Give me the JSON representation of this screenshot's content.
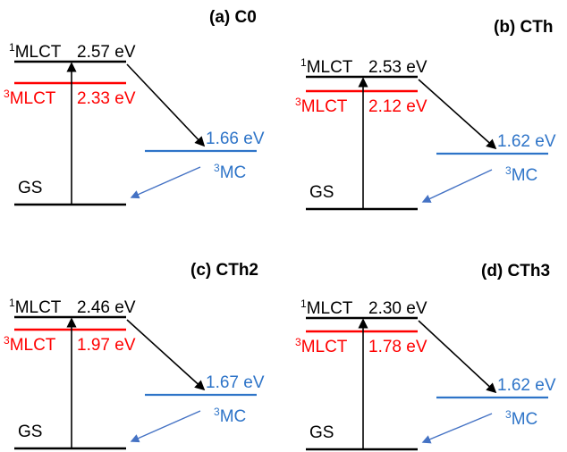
{
  "colors": {
    "black": "#000000",
    "red": "#ff0000",
    "blue": "#2e74c8",
    "arrow_blue": "#4472c4"
  },
  "panels": [
    {
      "title": "(a) C0",
      "s1_label": {
        "sup": "1",
        "text": "MLCT"
      },
      "s1_energy": "2.57 eV",
      "t1_label": {
        "sup": "3",
        "text": "MLCT"
      },
      "t1_energy": "2.33 eV",
      "mc_energy": "1.66 eV",
      "mc_label": {
        "sup": "3",
        "text": "MC"
      },
      "gs_label": "GS"
    },
    {
      "title": "(b) CTh",
      "s1_label": {
        "sup": "1",
        "text": "MLCT"
      },
      "s1_energy": "2.53 eV",
      "t1_label": {
        "sup": "3",
        "text": "MLCT"
      },
      "t1_energy": "2.12 eV",
      "mc_energy": "1.62 eV",
      "mc_label": {
        "sup": "3",
        "text": "MC"
      },
      "gs_label": "GS"
    },
    {
      "title": "(c) CTh2",
      "s1_label": {
        "sup": "1",
        "text": "MLCT"
      },
      "s1_energy": "2.46 eV",
      "t1_label": {
        "sup": "3",
        "text": "MLCT"
      },
      "t1_energy": "1.97 eV",
      "mc_energy": "1.67 eV",
      "mc_label": {
        "sup": "3",
        "text": "MC"
      },
      "gs_label": "GS"
    },
    {
      "title": "(d) CTh3",
      "s1_label": {
        "sup": "1",
        "text": "MLCT"
      },
      "s1_energy": "2.30 eV",
      "t1_label": {
        "sup": "3",
        "text": "MLCT"
      },
      "t1_energy": "1.78 eV",
      "mc_energy": "1.62 eV",
      "mc_label": {
        "sup": "3",
        "text": "MC"
      },
      "gs_label": "GS"
    }
  ]
}
